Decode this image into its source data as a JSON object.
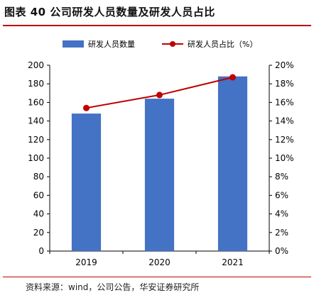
{
  "figure": {
    "title": "图表 40  公司研发人员数量及研发人员占比",
    "source": "资料来源：wind，公司公告，华安证券研究所"
  },
  "colors": {
    "bar": "#4472c4",
    "line": "#c00000",
    "axis": "#000000",
    "rule": "#c00000"
  },
  "chart_data": {
    "type": "bar",
    "categories": [
      "2019",
      "2020",
      "2021"
    ],
    "series": [
      {
        "name": "研发人员数量",
        "type": "bar",
        "axis": "left",
        "values": [
          148,
          164,
          188
        ]
      },
      {
        "name": "研发人员占比（%）",
        "type": "line",
        "axis": "right",
        "values": [
          15.4,
          16.8,
          18.7
        ]
      }
    ],
    "ylim": [
      0,
      200
    ],
    "y_ticks": [
      "0",
      "20",
      "40",
      "60",
      "80",
      "100",
      "120",
      "140",
      "160",
      "180",
      "200"
    ],
    "y2lim": [
      0,
      20
    ],
    "y2_ticks": [
      "0%",
      "2%",
      "4%",
      "6%",
      "8%",
      "10%",
      "12%",
      "14%",
      "16%",
      "18%",
      "20%"
    ],
    "grid": false,
    "legend": "top"
  }
}
